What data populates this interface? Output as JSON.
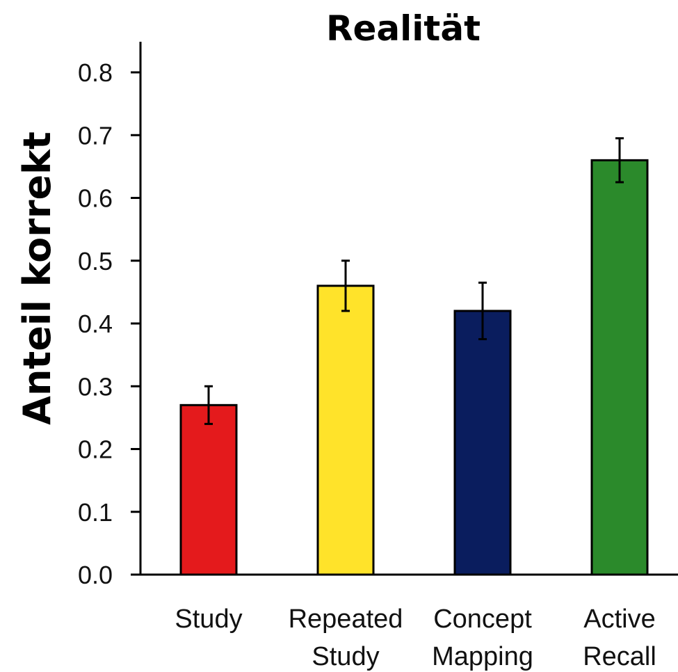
{
  "chart_data": {
    "type": "bar",
    "title": "Realität",
    "ylabel": "Anteil korrekt",
    "xlabel": "",
    "ylim": [
      0,
      0.85
    ],
    "yticks": [
      "0.0",
      "0.1",
      "0.2",
      "0.3",
      "0.4",
      "0.5",
      "0.6",
      "0.7",
      "0.8"
    ],
    "categories": [
      [
        "Study"
      ],
      [
        "Repeated",
        "Study"
      ],
      [
        "Concept",
        "Mapping"
      ],
      [
        "Active",
        "Recall"
      ]
    ],
    "values": [
      0.27,
      0.46,
      0.42,
      0.66
    ],
    "error_low": [
      0.24,
      0.42,
      0.375,
      0.625
    ],
    "error_high": [
      0.3,
      0.5,
      0.465,
      0.695
    ],
    "colors": [
      "#e41a1c",
      "#ffe32a",
      "#0a1d5e",
      "#2b8a2b"
    ],
    "grid": false,
    "legend": "none"
  }
}
